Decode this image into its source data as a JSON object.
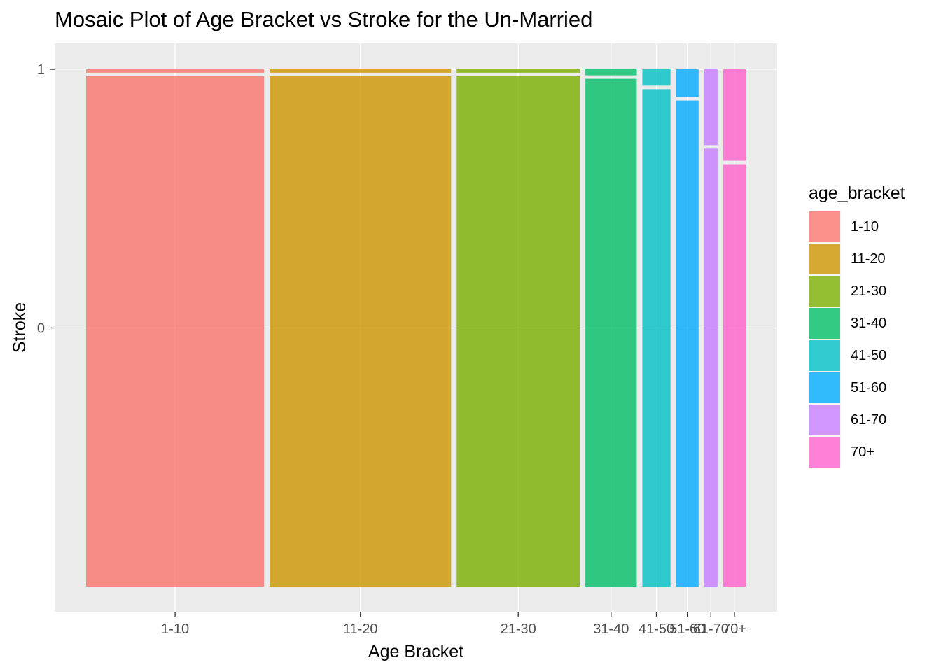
{
  "chart_data": {
    "type": "mosaic",
    "title": "Mosaic Plot of Age Bracket vs Stroke for the Un-Married",
    "xlabel": "Age Bracket",
    "ylabel": "Stroke",
    "categories": [
      "1-10",
      "11-20",
      "21-30",
      "31-40",
      "41-50",
      "51-60",
      "61-70",
      "70+"
    ],
    "x_tick_labels": [
      "1-10",
      "11-20",
      "21-30",
      "31-40",
      "41-50",
      "51-60",
      "61-70",
      "70+"
    ],
    "y_tick_labels": [
      "0",
      "1"
    ],
    "widths": [
      0.253,
      0.258,
      0.175,
      0.073,
      0.04,
      0.032,
      0.019,
      0.032
    ],
    "stroke_0_share": [
      0.99,
      0.99,
      0.99,
      0.985,
      0.965,
      0.943,
      0.85,
      0.82
    ],
    "stroke_1_share": [
      0.01,
      0.01,
      0.01,
      0.015,
      0.035,
      0.057,
      0.15,
      0.18
    ],
    "colors": [
      "#F8766D",
      "#CD9600",
      "#7CAE00",
      "#00BE67",
      "#00BFC4",
      "#00A9FF",
      "#C77CFF",
      "#FF61CC"
    ],
    "fill_alpha": 0.8,
    "panel_background": "#EBEBEB",
    "grid": true,
    "legend": {
      "title": "age_bracket",
      "position": "right",
      "entries": [
        "1-10",
        "11-20",
        "21-30",
        "31-40",
        "41-50",
        "51-60",
        "61-70",
        "70+"
      ]
    }
  }
}
